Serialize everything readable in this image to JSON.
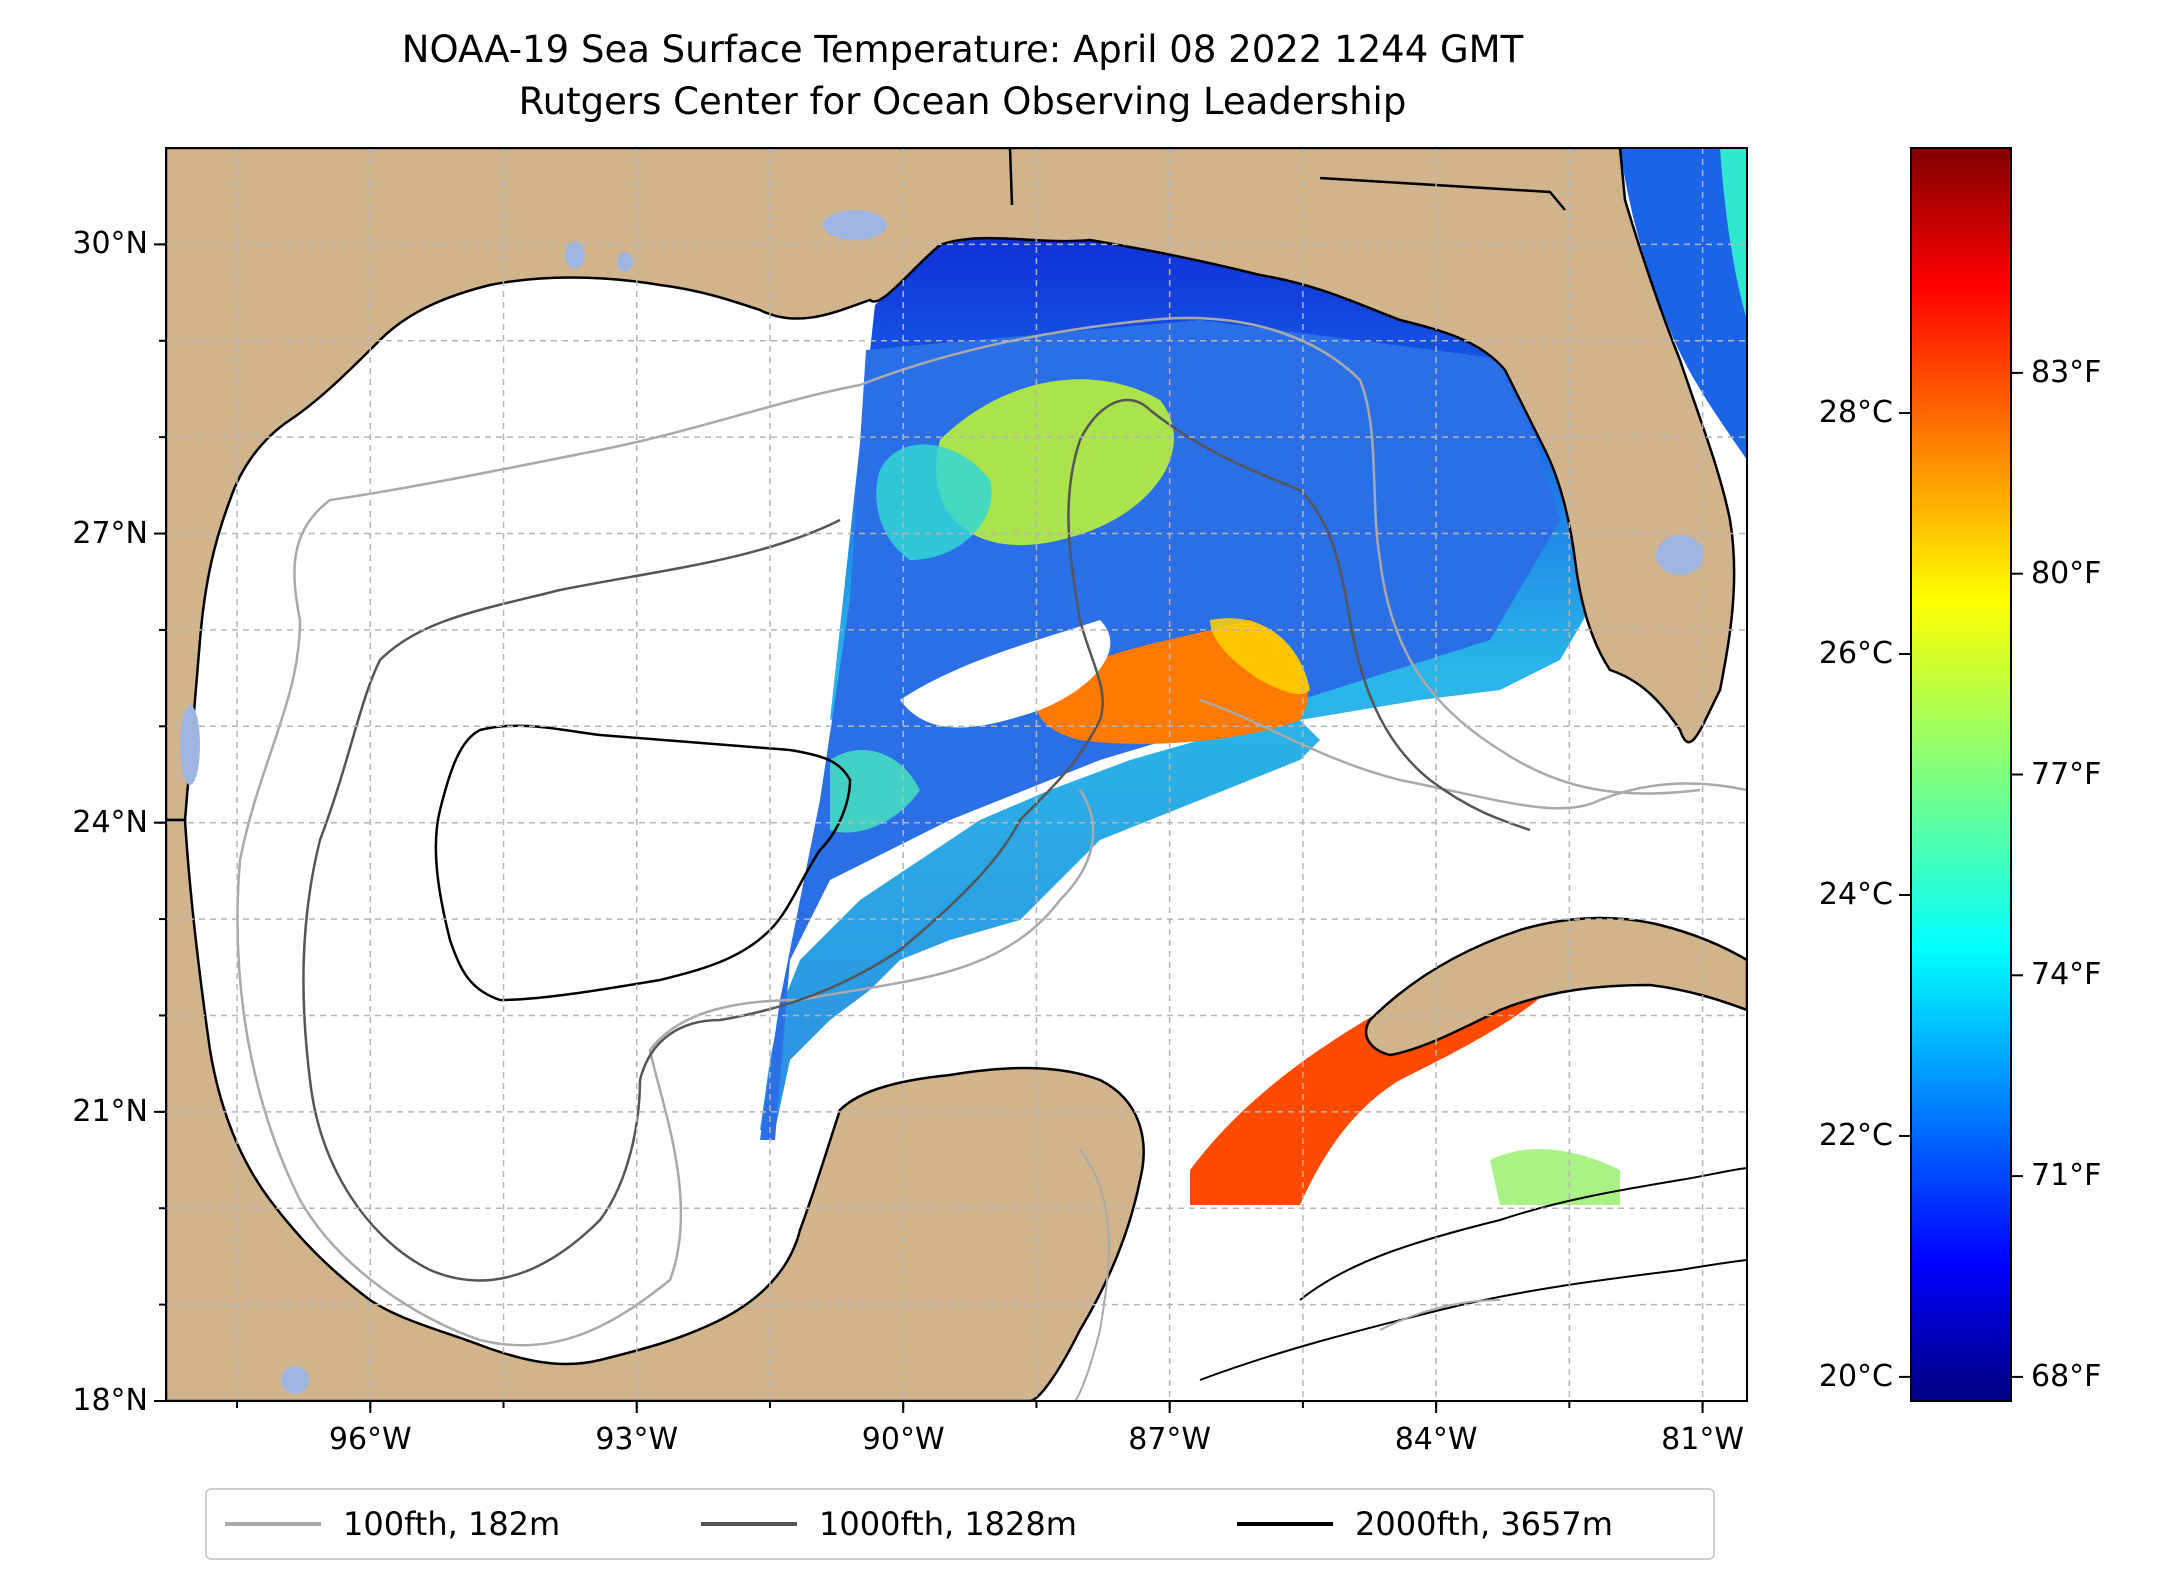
{
  "title": {
    "line1": "NOAA-19 Sea Surface Temperature: April 08 2022 1244 GMT",
    "line2": "Rutgers Center for Ocean Observing Leadership"
  },
  "map": {
    "lon_range": [
      -98.3,
      -80.5
    ],
    "lat_range": [
      18.0,
      31.0
    ],
    "lon_ticks": [
      {
        "value": -96,
        "label": "96°W"
      },
      {
        "value": -93,
        "label": "93°W"
      },
      {
        "value": -90,
        "label": "90°W"
      },
      {
        "value": -87,
        "label": "87°W"
      },
      {
        "value": -84,
        "label": "84°W"
      },
      {
        "value": -81,
        "label": "81°W"
      }
    ],
    "lat_ticks": [
      {
        "value": 30,
        "label": "30°N"
      },
      {
        "value": 27,
        "label": "27°N"
      },
      {
        "value": 24,
        "label": "24°N"
      },
      {
        "value": 21,
        "label": "21°N"
      },
      {
        "value": 18,
        "label": "18°N"
      }
    ],
    "grid": true,
    "colors": {
      "land": "#d2b48c",
      "ocean": "#ffffff",
      "lakes": "#9db5e0",
      "coast": "#000000"
    }
  },
  "colorbar": {
    "colormap": "jet",
    "range_c": [
      19.8,
      30.2
    ],
    "celsius_ticks": [
      {
        "value": 20,
        "label": "20°C"
      },
      {
        "value": 22,
        "label": "22°C"
      },
      {
        "value": 24,
        "label": "24°C"
      },
      {
        "value": 26,
        "label": "26°C"
      },
      {
        "value": 28,
        "label": "28°C"
      }
    ],
    "fahrenheit_ticks": [
      {
        "value": 68,
        "label": "68°F"
      },
      {
        "value": 71,
        "label": "71°F"
      },
      {
        "value": 74,
        "label": "74°F"
      },
      {
        "value": 77,
        "label": "77°F"
      },
      {
        "value": 80,
        "label": "80°F"
      },
      {
        "value": 83,
        "label": "83°F"
      }
    ]
  },
  "legend": {
    "placement": "bottom-center",
    "items": [
      {
        "label": "100fth, 182m",
        "color": "#a9a9a9"
      },
      {
        "label": "1000fth, 1828m",
        "color": "#555555"
      },
      {
        "label": "2000fth, 3657m",
        "color": "#000000"
      }
    ]
  }
}
